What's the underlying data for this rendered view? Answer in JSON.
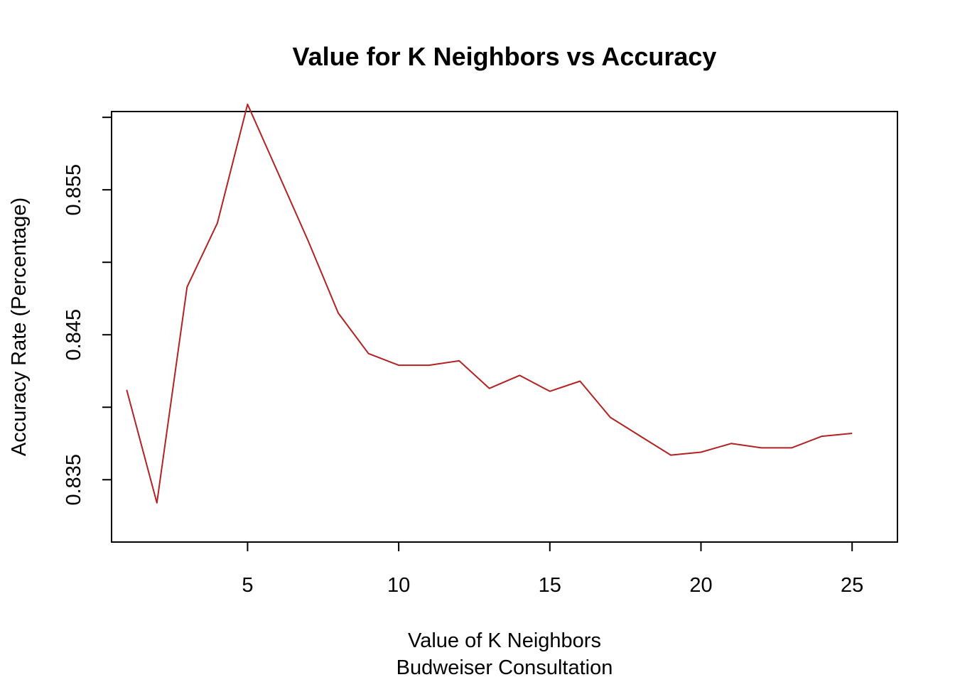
{
  "chart_data": {
    "type": "line",
    "title": "Value for K Neighbors vs Accuracy",
    "xlabel": "Value of K Neighbors",
    "xlabel_sub": "Budweiser Consultation",
    "ylabel": "Accuracy Rate (Percentage)",
    "x": [
      1,
      2,
      3,
      4,
      5,
      6,
      7,
      8,
      9,
      10,
      11,
      12,
      13,
      14,
      15,
      16,
      17,
      18,
      19,
      20,
      21,
      22,
      23,
      24,
      25
    ],
    "series": [
      {
        "color": "#b22222",
        "values": [
          0.8412,
          0.8334,
          0.8483,
          0.8527,
          0.8609,
          0.8562,
          0.8515,
          0.8465,
          0.8437,
          0.8429,
          0.8429,
          0.8432,
          0.8413,
          0.8422,
          0.8411,
          0.8418,
          0.8393,
          0.838,
          0.8367,
          0.8369,
          0.8375,
          0.8372,
          0.8372,
          0.838,
          0.8382
        ]
      }
    ],
    "xlim": [
      0.5,
      26.5
    ],
    "ylim": [
      0.8307,
      0.8604
    ],
    "x_ticks": [
      5,
      10,
      15,
      20,
      25
    ],
    "x_tick_labels": [
      "5",
      "10",
      "15",
      "20",
      "25"
    ],
    "y_ticks": [
      0.835,
      0.84,
      0.845,
      0.85,
      0.855,
      0.86
    ],
    "y_tick_labels": [
      "0.835",
      "",
      "0.845",
      "",
      "0.855",
      ""
    ],
    "grid": false,
    "legend": "none"
  }
}
